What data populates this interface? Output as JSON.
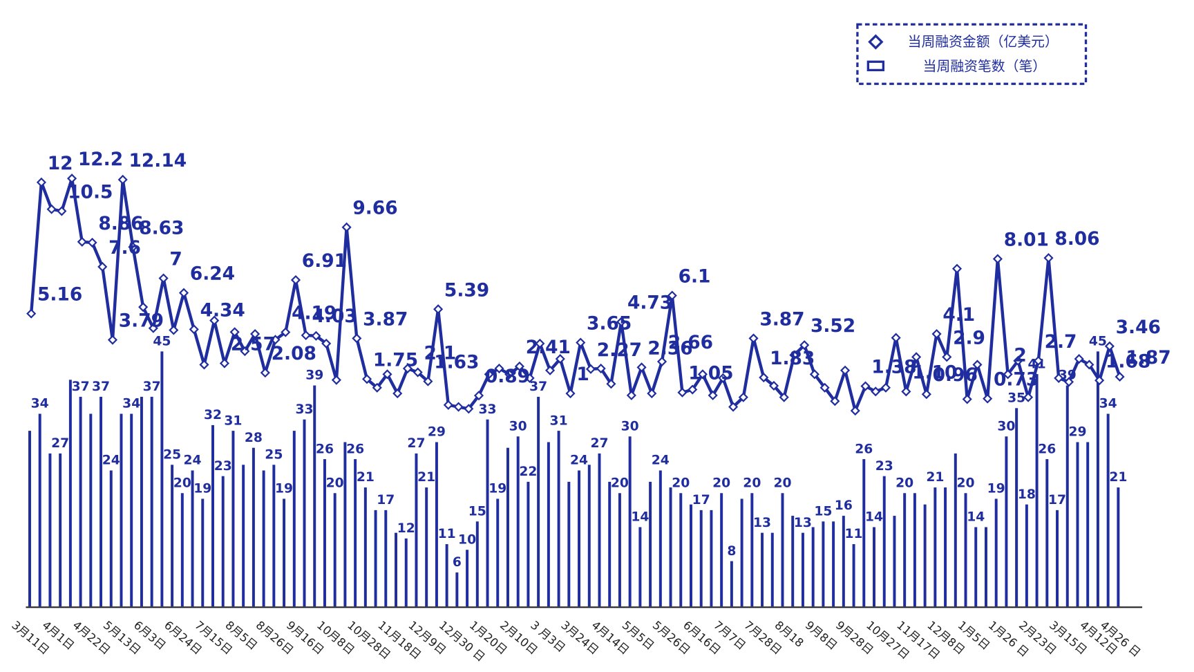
{
  "chart_data": {
    "type": "bar",
    "categories": [
      "3月11日",
      null,
      null,
      "4月1日",
      null,
      null,
      "4月22日",
      null,
      null,
      "5月13日",
      null,
      null,
      "6月3日",
      null,
      null,
      "6月24日",
      null,
      null,
      "7月15日",
      null,
      null,
      "8月5日",
      null,
      null,
      "8月26日",
      null,
      null,
      "9月16日",
      null,
      null,
      "10月8日",
      null,
      null,
      "10月28日",
      null,
      null,
      "11月18日",
      null,
      null,
      "12月9日",
      null,
      null,
      "12月30 日",
      null,
      null,
      "1月20日",
      null,
      null,
      "2月10日",
      null,
      null,
      "3 月3日",
      null,
      null,
      "3月24日",
      null,
      null,
      "4月14日",
      null,
      null,
      "5月5日",
      null,
      null,
      "5月26日",
      null,
      null,
      "6月16日",
      null,
      null,
      "7月7日",
      null,
      null,
      "7月28日",
      null,
      null,
      "8月18",
      null,
      null,
      "9月8日",
      null,
      null,
      "9月28日",
      null,
      null,
      "10月27日",
      null,
      null,
      "11月17日",
      null,
      null,
      "12月8日",
      null,
      null,
      "1月5日",
      null,
      null,
      "1月26 日",
      null,
      null,
      "2月23日",
      null,
      null,
      "3月15日",
      null,
      null,
      "4月12日",
      null,
      "4月26 日"
    ],
    "ylim": [
      0,
      89.4
    ],
    "y2lim": [
      -10.1,
      16.3
    ],
    "series": [
      {
        "name": "当周融资金额（亿美元）",
        "type": "line",
        "axis": "y2",
        "color": "#1f2d9e",
        "values": [
          5.16,
          12,
          10.6,
          10.5,
          12.2,
          8.9,
          8.86,
          7.6,
          3.79,
          12.14,
          8.63,
          5.5,
          4.4,
          7,
          4.3,
          6.24,
          4.34,
          2.5,
          4.8,
          2.57,
          4.2,
          3.2,
          4.1,
          2.08,
          3.8,
          4.19,
          6.91,
          4.03,
          4.0,
          3.6,
          1.7,
          9.66,
          3.87,
          1.75,
          1.3,
          2.0,
          1.0,
          2.3,
          2.1,
          1.63,
          5.39,
          0.4,
          0.3,
          0.2,
          0.89,
          2.0,
          2.3,
          2.0,
          2.41,
          1.8,
          3.6,
          2.2,
          2.8,
          1,
          3.65,
          2.27,
          2.3,
          1.5,
          4.73,
          0.9,
          2.36,
          1.0,
          2.66,
          6.1,
          1.05,
          1.2,
          2.0,
          0.9,
          1.8,
          0.3,
          0.8,
          3.87,
          1.83,
          1.4,
          0.8,
          3.0,
          3.52,
          2.0,
          1.3,
          0.6,
          2.2,
          0.1,
          1.38,
          1.1,
          1.3,
          3.9,
          1.1,
          2.9,
          0.96,
          4.1,
          2.9,
          7.5,
          0.7,
          2.5,
          0.73,
          8.01,
          2,
          2.7,
          0.8,
          2.7,
          8.06,
          1.8,
          1.6,
          2.8,
          2.5,
          1.68,
          3.46,
          1.87
        ],
        "value_labels": [
          "5.16",
          "12",
          null,
          "10.5",
          "12.2",
          null,
          "8.86",
          "7.6",
          "3.79",
          "12.14",
          "8.63",
          null,
          null,
          "7",
          null,
          "6.24",
          "4.34",
          null,
          null,
          "2.57",
          null,
          null,
          null,
          "2.08",
          null,
          "4.19",
          "6.91",
          "4.03",
          null,
          null,
          null,
          "9.66",
          "3.87",
          "1.75",
          null,
          null,
          null,
          null,
          "2.1",
          "1.63",
          "5.39",
          null,
          null,
          null,
          "0.89",
          null,
          null,
          null,
          "2.41",
          null,
          null,
          null,
          null,
          "1",
          "3.65",
          "2.27",
          null,
          null,
          "4.73",
          null,
          "2.36",
          null,
          "2.66",
          "6.1",
          "1.05",
          null,
          null,
          null,
          null,
          null,
          null,
          "3.87",
          "1.83",
          null,
          null,
          null,
          "3.52",
          null,
          null,
          null,
          null,
          null,
          "1.38",
          null,
          null,
          null,
          "1.10",
          null,
          "0.96",
          "4.1",
          "2.9",
          null,
          null,
          null,
          "0.73",
          "8.01",
          "2",
          null,
          null,
          "2.7",
          "8.06",
          null,
          null,
          null,
          null,
          "1.68",
          "3.46",
          "1.87"
        ]
      },
      {
        "name": "当周融资笔数（笔）",
        "type": "bar",
        "color": "#1f2d9e",
        "values": [
          31,
          34,
          27,
          27,
          40,
          37,
          34,
          37,
          24,
          34,
          34,
          37,
          37,
          45,
          25,
          20,
          24,
          19,
          32,
          23,
          31,
          25,
          28,
          24,
          25,
          19,
          31,
          33,
          39,
          26,
          20,
          29,
          26,
          21,
          17,
          17,
          13,
          12,
          27,
          21,
          29,
          11,
          6,
          10,
          15,
          33,
          19,
          28,
          30,
          22,
          37,
          29,
          31,
          22,
          24,
          25,
          27,
          22,
          20,
          30,
          14,
          22,
          24,
          21,
          20,
          18,
          17,
          17,
          20,
          8,
          19,
          20,
          13,
          13,
          20,
          16,
          13,
          14,
          15,
          15,
          16,
          11,
          26,
          14,
          23,
          16,
          20,
          20,
          18,
          21,
          21,
          27,
          20,
          14,
          14,
          19,
          30,
          35,
          18,
          41,
          26,
          17,
          39,
          29,
          29,
          45,
          34,
          21
        ],
        "value_labels": [
          null,
          "34",
          null,
          "27",
          null,
          "37",
          null,
          "37",
          "24",
          null,
          "34",
          null,
          "37",
          "45",
          "25",
          "20",
          "24",
          "19",
          "32",
          "23",
          "31",
          null,
          "28",
          null,
          "25",
          "19",
          null,
          "33",
          "39",
          "26",
          "20",
          null,
          "26",
          "21",
          null,
          "17",
          null,
          "12",
          "27",
          "21",
          "29",
          "11",
          "6",
          "10",
          "15",
          "33",
          "19",
          null,
          "30",
          "22",
          "37",
          null,
          "31",
          null,
          "24",
          null,
          "27",
          null,
          "20",
          "30",
          "14",
          null,
          "24",
          null,
          "20",
          null,
          "17",
          null,
          "20",
          "8",
          null,
          "20",
          "13",
          null,
          "20",
          null,
          "13",
          null,
          "15",
          null,
          "16",
          "11",
          "26",
          "14",
          "23",
          null,
          "20",
          null,
          null,
          "21",
          null,
          null,
          "20",
          "14",
          null,
          "19",
          "30",
          "35",
          "18",
          "41",
          "26",
          "17",
          "39",
          "29",
          null,
          "45",
          "34",
          "21"
        ]
      }
    ]
  }
}
